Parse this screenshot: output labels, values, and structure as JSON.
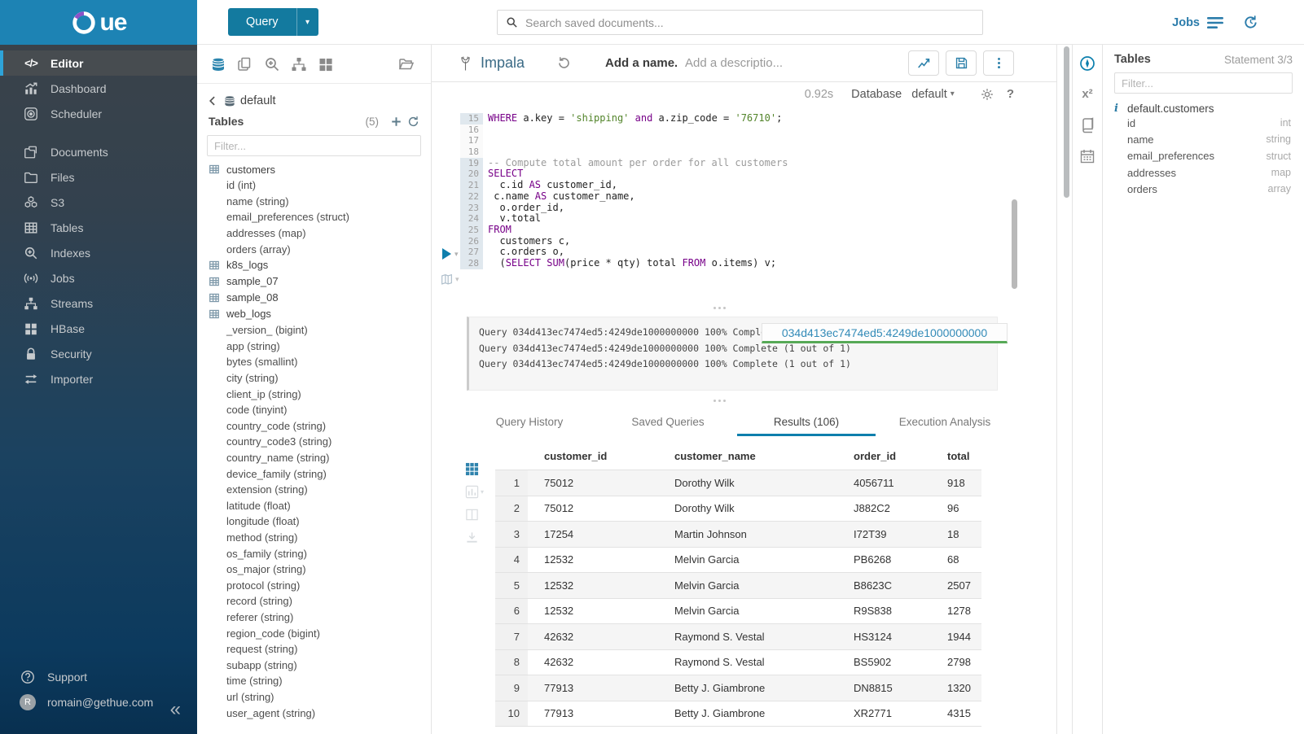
{
  "topbar": {
    "query_label": "Query",
    "search_placeholder": "Search saved documents...",
    "jobs_label": "Jobs"
  },
  "sidebar": {
    "items": [
      {
        "label": "Editor",
        "icon": "code",
        "active": true
      },
      {
        "label": "Dashboard",
        "icon": "dashboard"
      },
      {
        "label": "Scheduler",
        "icon": "scheduler"
      },
      {
        "label": "Documents",
        "icon": "documents",
        "gap": true
      },
      {
        "label": "Files",
        "icon": "files"
      },
      {
        "label": "S3",
        "icon": "s3"
      },
      {
        "label": "Tables",
        "icon": "tables"
      },
      {
        "label": "Indexes",
        "icon": "indexes"
      },
      {
        "label": "Jobs",
        "icon": "jobs"
      },
      {
        "label": "Streams",
        "icon": "streams"
      },
      {
        "label": "HBase",
        "icon": "hbase"
      },
      {
        "label": "Security",
        "icon": "security"
      },
      {
        "label": "Importer",
        "icon": "importer"
      }
    ],
    "support_label": "Support",
    "user_email": "romain@gethue.com",
    "avatar_letter": "R"
  },
  "left_assist": {
    "breadcrumb_db": "default",
    "tables_label": "Tables",
    "tables_count": "(5)",
    "filter_placeholder": "Filter...",
    "tables": [
      {
        "name": "customers",
        "columns": [
          "id (int)",
          "name (string)",
          "email_preferences (struct)",
          "addresses (map)",
          "orders (array)"
        ]
      },
      {
        "name": "k8s_logs",
        "columns": []
      },
      {
        "name": "sample_07",
        "columns": []
      },
      {
        "name": "sample_08",
        "columns": []
      },
      {
        "name": "web_logs",
        "columns": [
          "_version_ (bigint)",
          "app (string)",
          "bytes (smallint)",
          "city (string)",
          "client_ip (string)",
          "code (tinyint)",
          "country_code (string)",
          "country_code3 (string)",
          "country_name (string)",
          "device_family (string)",
          "extension (string)",
          "latitude (float)",
          "longitude (float)",
          "method (string)",
          "os_family (string)",
          "os_major (string)",
          "protocol (string)",
          "record (string)",
          "referer (string)",
          "region_code (bigint)",
          "request (string)",
          "subapp (string)",
          "time (string)",
          "url (string)",
          "user_agent (string)"
        ]
      }
    ]
  },
  "editor": {
    "engine": "Impala",
    "name_placeholder": "Add a name...",
    "description_placeholder": "Add a descriptio...",
    "duration": "0.92s",
    "database_label": "Database",
    "database_value": "default",
    "code_lines": [
      {
        "n": "15",
        "hl": true,
        "segs": [
          [
            "kw",
            "WHERE"
          ],
          [
            "t",
            " a.key = "
          ],
          [
            "str",
            "'shipping'"
          ],
          [
            "t",
            " "
          ],
          [
            "kw",
            "and"
          ],
          [
            "t",
            " a.zip_code = "
          ],
          [
            "str",
            "'76710'"
          ],
          [
            "t",
            ";"
          ]
        ]
      },
      {
        "n": "16",
        "segs": []
      },
      {
        "n": "17",
        "segs": []
      },
      {
        "n": "18",
        "segs": []
      },
      {
        "n": "19",
        "hl": true,
        "segs": [
          [
            "com",
            "-- Compute total amount per order for all customers"
          ]
        ]
      },
      {
        "n": "20",
        "hl": true,
        "segs": [
          [
            "kw",
            "SELECT"
          ]
        ]
      },
      {
        "n": "21",
        "hl": true,
        "segs": [
          [
            "t",
            "  c.id "
          ],
          [
            "kw",
            "AS"
          ],
          [
            "t",
            " customer_id,"
          ]
        ]
      },
      {
        "n": "22",
        "hl": true,
        "segs": [
          [
            "t",
            " c.name "
          ],
          [
            "kw",
            "AS"
          ],
          [
            "t",
            " customer_name,"
          ]
        ]
      },
      {
        "n": "23",
        "hl": true,
        "segs": [
          [
            "t",
            "  o.order_id,"
          ]
        ]
      },
      {
        "n": "24",
        "hl": true,
        "segs": [
          [
            "t",
            "  v.total"
          ]
        ]
      },
      {
        "n": "25",
        "hl": true,
        "segs": [
          [
            "kw",
            "FROM"
          ]
        ]
      },
      {
        "n": "26",
        "hl": true,
        "segs": [
          [
            "t",
            "  customers c,"
          ]
        ]
      },
      {
        "n": "27",
        "hl": true,
        "segs": [
          [
            "t",
            "  c.orders o,"
          ]
        ]
      },
      {
        "n": "28",
        "hl": true,
        "segs": [
          [
            "t",
            "  ("
          ],
          [
            "kw",
            "SELECT"
          ],
          [
            "t",
            " "
          ],
          [
            "kw",
            "SUM"
          ],
          [
            "t",
            "(price * qty) total "
          ],
          [
            "kw",
            "FROM"
          ],
          [
            "t",
            " o.items) v;"
          ]
        ]
      }
    ]
  },
  "log": {
    "lines": [
      "Query 034d413ec7474ed5:4249de1000000000 100% Complete (1 out of 1)",
      "Query 034d413ec7474ed5:4249de1000000000 100% Complete (1 out of 1)",
      "Query 034d413ec7474ed5:4249de1000000000 100% Complete (1 out of 1)"
    ],
    "tooltip": "034d413ec7474ed5:4249de1000000000"
  },
  "result_tabs": [
    {
      "label": "Query History"
    },
    {
      "label": "Saved Queries"
    },
    {
      "label": "Results (106)",
      "active": true
    },
    {
      "label": "Execution Analysis"
    }
  ],
  "results": {
    "columns": [
      "customer_id",
      "customer_name",
      "order_id",
      "total"
    ],
    "rows": [
      [
        "1",
        "75012",
        "Dorothy Wilk",
        "4056711",
        "918"
      ],
      [
        "2",
        "75012",
        "Dorothy Wilk",
        "J882C2",
        "96"
      ],
      [
        "3",
        "17254",
        "Martin Johnson",
        "I72T39",
        "18"
      ],
      [
        "4",
        "12532",
        "Melvin Garcia",
        "PB6268",
        "68"
      ],
      [
        "5",
        "12532",
        "Melvin Garcia",
        "B8623C",
        "2507"
      ],
      [
        "6",
        "12532",
        "Melvin Garcia",
        "R9S838",
        "1278"
      ],
      [
        "7",
        "42632",
        "Raymond S. Vestal",
        "HS3124",
        "1944"
      ],
      [
        "8",
        "42632",
        "Raymond S. Vestal",
        "BS5902",
        "2798"
      ],
      [
        "9",
        "77913",
        "Betty J. Giambrone",
        "DN8815",
        "1320"
      ],
      [
        "10",
        "77913",
        "Betty J. Giambrone",
        "XR2771",
        "4315"
      ]
    ]
  },
  "right_assist": {
    "title": "Tables",
    "statement": "Statement 3/3",
    "filter_placeholder": "Filter...",
    "table_name": "default.customers",
    "columns": [
      {
        "name": "id",
        "type": "int"
      },
      {
        "name": "name",
        "type": "string"
      },
      {
        "name": "email_preferences",
        "type": "struct"
      },
      {
        "name": "addresses",
        "type": "map"
      },
      {
        "name": "orders",
        "type": "array"
      }
    ]
  },
  "colors": {
    "primary": "#0b7fad",
    "logo_bg": "#1d83b4",
    "accent": "#2ea3d8",
    "keyword": "#770088",
    "string": "#52842a",
    "comment": "#9b9b9b",
    "progress_green": "#57a957"
  }
}
